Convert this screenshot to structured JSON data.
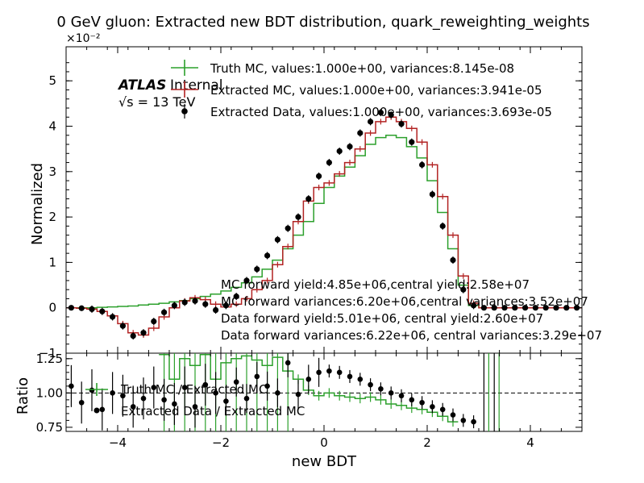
{
  "chart_data": [
    {
      "type": "line",
      "panel": "main",
      "title": "0 GeV gluon: Extracted new BDT distribution, quark_reweighting_weights",
      "ylabel": "Normalized",
      "y_multiplier": "×10⁻²",
      "xlim": [
        -5,
        5
      ],
      "ylim": [
        -0.01,
        0.0575
      ],
      "x_ticks": [
        -4,
        -2,
        0,
        2,
        4
      ],
      "x_tick_labels": [
        "−4",
        "−2",
        "0",
        "2",
        "4"
      ],
      "y_ticks": [
        -0.01,
        0,
        0.01,
        0.02,
        0.03,
        0.04,
        0.05
      ],
      "y_tick_labels": [
        "−1",
        "0",
        "1",
        "2",
        "3",
        "4",
        "5"
      ],
      "atlas_label": "ATLAS",
      "atlas_status": "Internal",
      "energy_label": "√s = 13 TeV",
      "legend_position": "upper center",
      "legend": [
        "Truth MC, values:1.000e+00, variances:8.145e-08",
        "Extracted MC, values:1.000e+00, variances:3.941e-05",
        "Extracted Data, values:1.000e+00, variances:3.693e-05"
      ],
      "annotations": [
        "MC forward yield:4.85e+06,central yield:2.58e+07",
        "MC forward variances:6.20e+06,central variances:3.52e+07",
        "Data forward yield:5.01e+06, central yield:2.60e+07",
        "Data forward variances:6.22e+06, central variances:3.29e+07"
      ],
      "colors": {
        "truth_mc": "#2ca02c",
        "extracted_mc": "#b22222",
        "extracted_data": "#000000"
      },
      "series": [
        {
          "name": "Truth MC, values:1.000e+00, variances:8.145e-08",
          "style": "step",
          "x": [
            -5.0,
            -4.8,
            -4.6,
            -4.4,
            -4.2,
            -4.0,
            -3.8,
            -3.6,
            -3.4,
            -3.2,
            -3.0,
            -2.8,
            -2.6,
            -2.4,
            -2.2,
            -2.0,
            -1.8,
            -1.6,
            -1.4,
            -1.2,
            -1.0,
            -0.8,
            -0.6,
            -0.4,
            -0.2,
            0.0,
            0.2,
            0.4,
            0.6,
            0.8,
            1.0,
            1.2,
            1.4,
            1.6,
            1.8,
            2.0,
            2.2,
            2.4,
            2.6,
            2.8,
            3.0,
            3.2,
            3.4,
            3.6,
            3.8,
            4.0,
            4.2,
            4.4,
            4.6,
            4.8,
            5.0
          ],
          "y": [
            0.0,
            0.0,
            0.0,
            0.0001,
            0.0002,
            0.0003,
            0.0004,
            0.0006,
            0.0008,
            0.001,
            0.0013,
            0.0016,
            0.002,
            0.0025,
            0.003,
            0.0037,
            0.0045,
            0.0055,
            0.0068,
            0.0085,
            0.0105,
            0.013,
            0.016,
            0.019,
            0.023,
            0.0265,
            0.029,
            0.031,
            0.0335,
            0.036,
            0.0375,
            0.038,
            0.0375,
            0.0355,
            0.033,
            0.028,
            0.021,
            0.013,
            0.005,
            0.0005,
            0.0,
            0.0,
            0.0,
            0.0,
            0.0,
            0.0,
            0.0,
            0.0,
            0.0,
            0.0,
            0.0
          ]
        },
        {
          "name": "Extracted MC, values:1.000e+00, variances:3.941e-05",
          "style": "step",
          "x": [
            -5.0,
            -4.8,
            -4.6,
            -4.4,
            -4.2,
            -4.0,
            -3.8,
            -3.6,
            -3.4,
            -3.2,
            -3.0,
            -2.8,
            -2.6,
            -2.4,
            -2.2,
            -2.0,
            -1.8,
            -1.6,
            -1.4,
            -1.2,
            -1.0,
            -0.8,
            -0.6,
            -0.4,
            -0.2,
            0.0,
            0.2,
            0.4,
            0.6,
            0.8,
            1.0,
            1.2,
            1.4,
            1.6,
            1.8,
            2.0,
            2.2,
            2.4,
            2.6,
            2.8,
            3.0,
            3.2,
            3.4,
            3.6,
            3.8,
            4.0,
            4.2,
            4.4,
            4.6,
            4.8,
            5.0
          ],
          "y": [
            0.0,
            -0.0001,
            -0.0003,
            -0.0008,
            -0.0018,
            -0.0035,
            -0.0055,
            -0.006,
            -0.0045,
            -0.002,
            0.0,
            0.0015,
            0.0022,
            0.0018,
            0.0008,
            0.0002,
            0.0008,
            0.002,
            0.004,
            0.006,
            0.0095,
            0.0135,
            0.019,
            0.0235,
            0.0265,
            0.0275,
            0.0295,
            0.032,
            0.035,
            0.0385,
            0.041,
            0.042,
            0.041,
            0.0395,
            0.0365,
            0.0315,
            0.0245,
            0.016,
            0.007,
            0.001,
            0.0,
            0.0,
            0.0,
            0.0,
            0.0,
            0.0,
            0.0,
            0.0,
            0.0,
            0.0,
            0.0
          ]
        },
        {
          "name": "Extracted Data, values:1.000e+00, variances:3.693e-05",
          "style": "points",
          "x": [
            -4.9,
            -4.7,
            -4.5,
            -4.3,
            -4.1,
            -3.9,
            -3.7,
            -3.5,
            -3.3,
            -3.1,
            -2.9,
            -2.7,
            -2.5,
            -2.3,
            -2.1,
            -1.9,
            -1.7,
            -1.5,
            -1.3,
            -1.1,
            -0.9,
            -0.7,
            -0.5,
            -0.3,
            -0.1,
            0.1,
            0.3,
            0.5,
            0.7,
            0.9,
            1.1,
            1.3,
            1.5,
            1.7,
            1.9,
            2.1,
            2.3,
            2.5,
            2.7,
            2.9,
            3.1,
            3.3,
            3.5,
            3.7,
            3.9,
            4.1,
            4.3,
            4.5,
            4.7,
            4.9
          ],
          "y": [
            0.0,
            -0.0001,
            -0.0003,
            -0.0008,
            -0.002,
            -0.004,
            -0.0062,
            -0.0055,
            -0.003,
            -0.001,
            0.0005,
            0.0012,
            0.0015,
            0.0008,
            -0.0005,
            0.0005,
            0.0025,
            0.006,
            0.0085,
            0.0115,
            0.015,
            0.0175,
            0.02,
            0.024,
            0.029,
            0.032,
            0.0345,
            0.0355,
            0.0385,
            0.041,
            0.043,
            0.0425,
            0.0405,
            0.0365,
            0.0315,
            0.025,
            0.018,
            0.0105,
            0.004,
            0.0005,
            0.0,
            0.0,
            0.0,
            0.0,
            0.0,
            0.0,
            0.0,
            0.0,
            0.0,
            0.0
          ]
        }
      ]
    },
    {
      "type": "line",
      "panel": "ratio",
      "xlabel": "new BDT",
      "ylabel": "Ratio",
      "xlim": [
        -5,
        5
      ],
      "ylim": [
        0.72,
        1.29
      ],
      "x_ticks": [
        -4,
        -2,
        0,
        2,
        4
      ],
      "x_tick_labels": [
        "−4",
        "−2",
        "0",
        "2",
        "4"
      ],
      "y_ticks": [
        0.75,
        1.0,
        1.25
      ],
      "y_tick_labels": [
        "0.75",
        "1.00",
        "1.25"
      ],
      "reference_line": 1.0,
      "legend": [
        "Truth MC / Extracted MC",
        "Extracted Data / Extracted MC"
      ],
      "series": [
        {
          "name": "Truth MC / Extracted MC",
          "style": "step",
          "x": [
            -3.2,
            -3.0,
            -2.8,
            -2.6,
            -2.4,
            -2.2,
            -2.0,
            -1.8,
            -1.6,
            -1.4,
            -1.2,
            -1.0,
            -0.8,
            -0.6,
            -0.4,
            -0.2,
            0.0,
            0.2,
            0.4,
            0.6,
            0.8,
            1.0,
            1.2,
            1.4,
            1.6,
            1.8,
            2.0,
            2.2,
            2.4,
            2.6
          ],
          "y": [
            1.28,
            1.1,
            1.25,
            1.2,
            1.28,
            1.1,
            1.22,
            1.25,
            1.27,
            1.24,
            1.2,
            1.26,
            1.16,
            1.1,
            1.02,
            0.98,
            1.0,
            0.98,
            0.97,
            0.96,
            0.97,
            0.95,
            0.92,
            0.91,
            0.89,
            0.88,
            0.86,
            0.83,
            0.79,
            0.74
          ]
        },
        {
          "name": "Extracted Data / Extracted MC",
          "style": "points",
          "x": [
            -4.9,
            -4.7,
            -4.5,
            -4.3,
            -4.1,
            -3.9,
            -3.7,
            -3.5,
            -3.3,
            -3.1,
            -2.9,
            -2.7,
            -2.5,
            -2.3,
            -2.1,
            -1.9,
            -1.7,
            -1.5,
            -1.3,
            -1.1,
            -0.9,
            -0.7,
            -0.5,
            -0.3,
            -0.1,
            0.1,
            0.3,
            0.5,
            0.7,
            0.9,
            1.1,
            1.3,
            1.5,
            1.7,
            1.9,
            2.1,
            2.3,
            2.5,
            2.7,
            2.9
          ],
          "y": [
            1.05,
            0.93,
            1.02,
            0.88,
            1.0,
            0.98,
            0.9,
            0.96,
            1.04,
            0.95,
            0.92,
            1.04,
            0.9,
            1.06,
            1.0,
            0.94,
            1.08,
            0.96,
            1.12,
            1.05,
            1.0,
            1.22,
            0.99,
            1.1,
            1.15,
            1.16,
            1.15,
            1.12,
            1.1,
            1.06,
            1.03,
            1.0,
            0.98,
            0.95,
            0.93,
            0.9,
            0.88,
            0.84,
            0.8,
            0.79
          ]
        }
      ]
    }
  ]
}
